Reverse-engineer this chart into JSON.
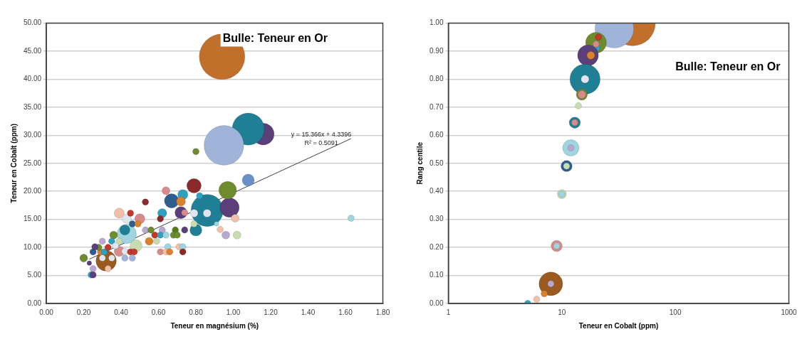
{
  "chart_data": [
    {
      "type": "bubble",
      "title": "Bulle: Teneur en Or",
      "xlabel": "Teneur en magnésium (%)",
      "ylabel": "Teneur en Cobalt (ppm)",
      "xlim": [
        0,
        1.8
      ],
      "xticks": [
        {
          "value": 0,
          "label": "0.00"
        },
        {
          "value": 0.2,
          "label": "0.20"
        },
        {
          "value": 0.4,
          "label": "0.40"
        },
        {
          "value": 0.6,
          "label": "0.60"
        },
        {
          "value": 0.8,
          "label": "0.80"
        },
        {
          "value": 1,
          "label": "1.00"
        },
        {
          "value": 1.2,
          "label": "1.20"
        },
        {
          "value": 1.4,
          "label": "1.40"
        },
        {
          "value": 1.6,
          "label": "1.60"
        },
        {
          "value": 1.8,
          "label": "1.80"
        }
      ],
      "ylim": [
        0,
        50
      ],
      "yticks": [
        {
          "value": 0,
          "label": "0.00"
        },
        {
          "value": 5,
          "label": "5.00"
        },
        {
          "value": 10,
          "label": "10.00"
        },
        {
          "value": 15,
          "label": "15.00"
        },
        {
          "value": 20,
          "label": "20.00"
        },
        {
          "value": 25,
          "label": "25.00"
        },
        {
          "value": 30,
          "label": "30.00"
        },
        {
          "value": 35,
          "label": "35.00"
        },
        {
          "value": 40,
          "label": "40.00"
        },
        {
          "value": 45,
          "label": "45.00"
        },
        {
          "value": 50,
          "label": "50.00"
        }
      ],
      "grid": "y",
      "legend": false,
      "annotations": [
        "y = 15.366x + 4.3396",
        "R² = 0.5091"
      ],
      "series": [
        {
          "type": "bubble",
          "x": [
            1.16,
            1.08,
            0.95,
            0.94,
            0.86,
            0.32,
            0.98,
            0.43,
            0.97,
            0.79,
            0.67,
            1.08,
            0.8,
            0.72,
            0.48,
            0.8,
            0.73,
            0.39,
            0.5,
            0.42,
            0.43,
            0.39,
            0.72,
            0.62,
            0.64,
            1.01,
            0.96,
            1.02,
            0.36,
            0.55,
            0.2,
            0.79,
            0.86,
            0.74,
            0.82,
            0.53,
            0.61,
            0.79,
            0.91,
            0.93,
            0.69,
            0.68,
            0.7,
            0.74,
            0.62,
            0.58,
            0.61,
            0.64,
            0.59,
            0.65,
            0.71,
            0.73,
            0.61,
            0.64,
            0.66,
            0.73,
            0.45,
            0.46,
            0.49,
            0.53,
            0.56,
            0.25,
            0.29,
            0.31,
            0.28,
            0.26,
            0.3,
            0.35,
            0.39,
            0.33,
            0.37,
            0.42,
            0.45,
            0.47,
            0.3,
            0.35,
            0.42,
            0.46,
            0.23,
            0.25,
            0.33,
            0.24,
            0.25,
            1.63
          ],
          "values": [
            30.2,
            31.1,
            28.2,
            44.0,
            16.6,
            7.6,
            17.1,
            12.4,
            20.2,
            21.0,
            18.3,
            22.0,
            13.1,
            16.2,
            10.3,
            27.1,
            19.4,
            16.1,
            15.1,
            13.1,
            15.1,
            9.3,
            18.2,
            16.1,
            20.1,
            15.2,
            12.2,
            12.2,
            12.2,
            11.1,
            8.1,
            16.1,
            16.1,
            16.2,
            19.2,
            18.1,
            15.1,
            14.2,
            14.2,
            13.2,
            13.1,
            12.2,
            12.2,
            13.1,
            13.1,
            12.2,
            12.2,
            12.2,
            11.1,
            10.1,
            10.1,
            10.1,
            9.2,
            9.2,
            9.2,
            9.2,
            16.1,
            14.2,
            14.2,
            13.1,
            13.1,
            9.2,
            9.2,
            9.2,
            10.0,
            10.1,
            11.1,
            11.1,
            11.1,
            10.0,
            10.3,
            9.3,
            9.2,
            9.2,
            8.1,
            8.1,
            8.1,
            8.1,
            7.2,
            6.2,
            6.2,
            5.1,
            5.1,
            15.2
          ],
          "sizes": [
            0.23,
            0.5,
            0.76,
            1,
            0.5,
            0.2,
            0.18,
            0.18,
            0.15,
            0.1,
            0.1,
            0.07,
            0.07,
            0.07,
            0.07,
            0.02,
            0.05,
            0.05,
            0.05,
            0.05,
            0.04,
            0.05,
            0.04,
            0.04,
            0.03,
            0.03,
            0.03,
            0.03,
            0.03,
            0.03,
            0.03,
            0.03,
            0.03,
            0.02,
            0.02,
            0.02,
            0.02,
            0.02,
            0.01,
            0.02,
            0.02,
            0.02,
            0.02,
            0.02,
            0.02,
            0.02,
            0.02,
            0.02,
            0.02,
            0.02,
            0.02,
            0.02,
            0.02,
            0.02,
            0.02,
            0.02,
            0.02,
            0.02,
            0.02,
            0.02,
            0.02,
            0.02,
            0.02,
            0.02,
            0.02,
            0.02,
            0.02,
            0.02,
            0.02,
            0.02,
            0.02,
            0.02,
            0.02,
            0.02,
            0.02,
            0.02,
            0.02,
            0.02,
            0.01,
            0.02,
            0.02,
            0.02,
            0.02,
            0.02
          ],
          "colors": [
            "#5b3f7a",
            "#1f7f95",
            "#9fb4d8",
            "#c0702a",
            "#1f7f95",
            "#9a5a20",
            "#5b3f7a",
            "#9fd4e0",
            "#6e8c2e",
            "#8b2a2a",
            "#2f5d8f",
            "#6a8fc8",
            "#1f7f95",
            "#5b3f7a",
            "#c8dcb0",
            "#6e8c2e",
            "#31a0c0",
            "#f0c0a8",
            "#d88a8a",
            "#1f7f95",
            "#dfe6ef",
            "#d88a8a",
            "#d9822b",
            "#31a0c0",
            "#d88a8a",
            "#f0c0a8",
            "#b8a8d0",
            "#c8dcb0",
            "#6e8c2e",
            "#d9822b",
            "#6e8c2e",
            "#dfe6ef",
            "#dfe6ef",
            "#d88a8a",
            "#31a0c0",
            "#8b2a2a",
            "#8b2a2a",
            "#c8dcb0",
            "#9fd4e0",
            "#f0c0a8",
            "#5a7a20",
            "#6e8c2e",
            "#6e8c2e",
            "#5b3f7a",
            "#b8a8d0",
            "#c0392b",
            "#31a0c0",
            "#9fd4e0",
            "#c8dcb0",
            "#9fd4e0",
            "#f0c0a8",
            "#9fd4e0",
            "#d88a8a",
            "#f0c0a8",
            "#d9822b",
            "#8b2a2a",
            "#c0392b",
            "#2f5d8f",
            "#d9822b",
            "#b8a8d0",
            "#6e8c2e",
            "#2f5d8f",
            "#d9822b",
            "#31a0c0",
            "#6e8c2e",
            "#5b3f7a",
            "#b8a8d0",
            "#31a0c0",
            "#c8dcb0",
            "#c0392b",
            "#dfe6ef",
            "#dfe6ef",
            "#c0392b",
            "#c0392b",
            "#dfe6ef",
            "#dfe6ef",
            "#9fb4d8",
            "#9fb4d8",
            "#5b3f7a",
            "#b8a8d0",
            "#f0c0a8",
            "#31a0c0",
            "#5b3f7a",
            "#9fd4e0"
          ]
        },
        {
          "type": "line",
          "x": [
            0.23,
            1.63
          ],
          "values": [
            7.9,
            29.4
          ],
          "color": "#404040"
        }
      ]
    },
    {
      "type": "bubble",
      "title": "Bulle: Teneur en Or",
      "xlabel": "Teneur en Cobalt (ppm)",
      "ylabel": "Rang centile",
      "log": "x",
      "xlim": [
        1,
        1000
      ],
      "xticks": [
        1,
        10,
        100,
        1000
      ],
      "ylim": [
        0,
        1
      ],
      "yticks": [
        {
          "value": 0,
          "label": "0.00"
        },
        {
          "value": 0.1,
          "label": "0.10"
        },
        {
          "value": 0.2,
          "label": "0.20"
        },
        {
          "value": 0.3,
          "label": "0.30"
        },
        {
          "value": 0.4,
          "label": "0.40"
        },
        {
          "value": 0.5,
          "label": "0.50"
        },
        {
          "value": 0.6,
          "label": "0.60"
        },
        {
          "value": 0.7,
          "label": "0.70"
        },
        {
          "value": 0.8,
          "label": "0.80"
        },
        {
          "value": 0.9,
          "label": "0.90"
        },
        {
          "value": 1,
          "label": "1.00"
        }
      ],
      "grid": "y",
      "legend": false,
      "series": [
        {
          "type": "bubble",
          "x": [
            42,
            29,
            20,
            20,
            20,
            21,
            17,
            18,
            16,
            16,
            15,
            15,
            14,
            13,
            13,
            12,
            12,
            11,
            11,
            10,
            10,
            9,
            9,
            8,
            8,
            7,
            6,
            5
          ],
          "values": [
            1.0,
            0.98,
            0.93,
            0.91,
            0.925,
            0.95,
            0.885,
            0.885,
            0.8,
            0.8,
            0.745,
            0.745,
            0.705,
            0.645,
            0.645,
            0.555,
            0.555,
            0.49,
            0.49,
            0.39,
            0.39,
            0.205,
            0.205,
            0.07,
            0.07,
            0.035,
            0.015,
            0.0
          ],
          "sizes": [
            1,
            0.72,
            0.21,
            0.03,
            0.02,
            0.02,
            0.21,
            0.03,
            0.44,
            0.03,
            0.06,
            0.03,
            0.02,
            0.06,
            0.02,
            0.13,
            0.02,
            0.06,
            0.02,
            0.04,
            0.02,
            0.06,
            0.02,
            0.27,
            0.02,
            0.02,
            0.02,
            0.02
          ],
          "colors": [
            "#c0702a",
            "#9fb4d8",
            "#6e8c2e",
            "#31a0c0",
            "#d88a8a",
            "#c0392b",
            "#5b3f7a",
            "#d9822b",
            "#1f7f95",
            "#dfe6ef",
            "#6e8c2e",
            "#d88a8a",
            "#c8dcb0",
            "#1f7f95",
            "#d88a8a",
            "#9fd4e0",
            "#b8a8d0",
            "#2f5d8f",
            "#c8dcb0",
            "#c8dcb0",
            "#9fd4e0",
            "#d88a8a",
            "#9fd4e0",
            "#9a5a20",
            "#b8a8d0",
            "#d9822b",
            "#f0c0a8",
            "#31a0c0"
          ]
        }
      ]
    }
  ]
}
